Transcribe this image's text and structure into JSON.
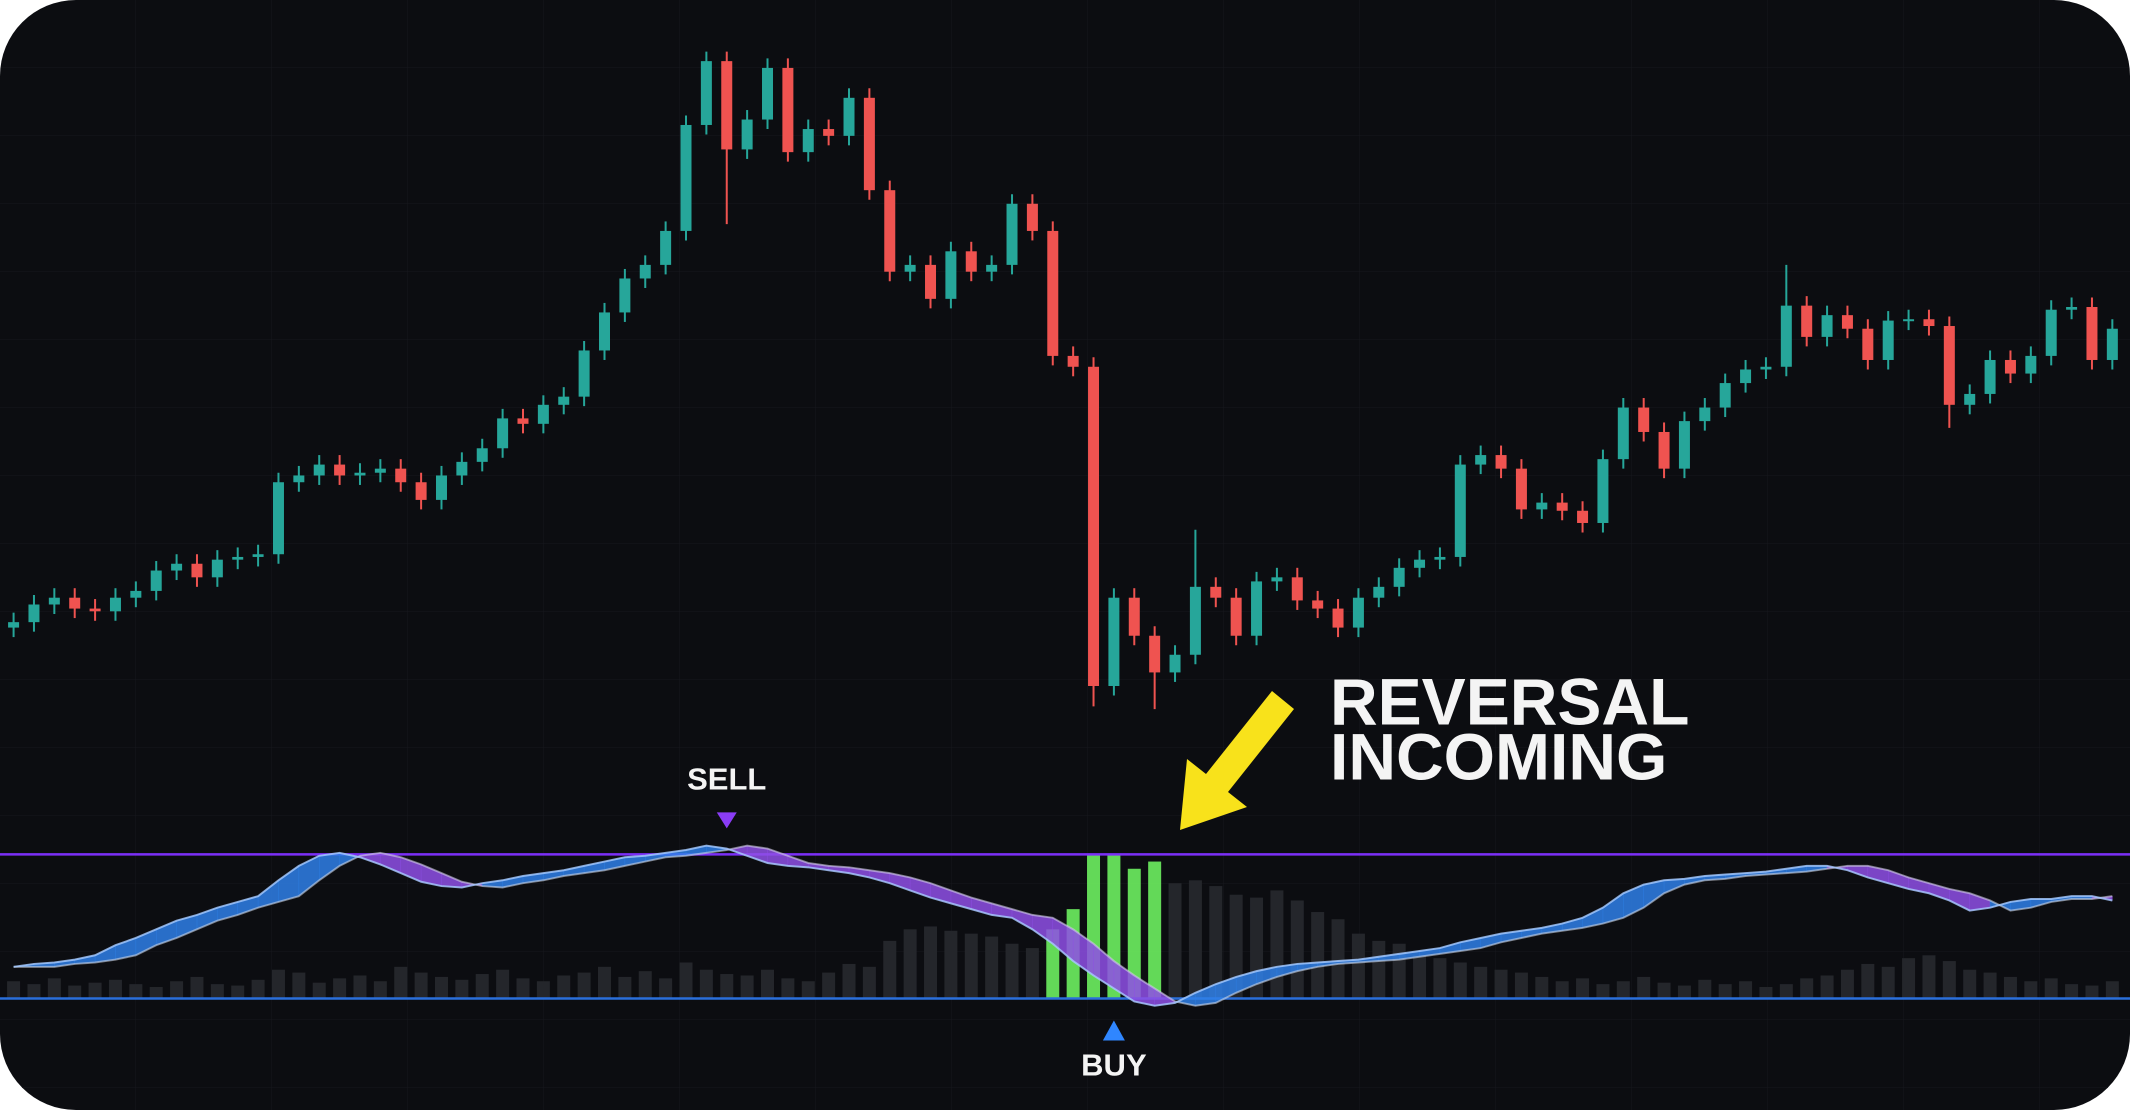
{
  "chart_data": {
    "type": "candlestick",
    "up_color": "#26a69a",
    "down_color": "#ef5350",
    "ylim": [
      0,
      600
    ],
    "open": [
      138,
      142,
      155,
      160,
      152,
      150,
      160,
      165,
      180,
      185,
      175,
      188,
      190,
      192,
      245,
      250,
      258,
      250,
      252,
      255,
      245,
      232,
      250,
      260,
      270,
      292,
      288,
      302,
      308,
      342,
      370,
      395,
      405,
      430,
      508,
      555,
      490,
      512,
      550,
      488,
      505,
      500,
      528,
      460,
      400,
      405,
      380,
      415,
      400,
      405,
      450,
      430,
      338,
      330,
      95,
      160,
      132,
      105,
      118,
      168,
      160,
      132,
      172,
      175,
      158,
      152,
      138,
      160,
      168,
      182,
      188,
      190,
      258,
      265,
      255,
      225,
      230,
      224,
      215,
      262,
      300,
      282,
      255,
      290,
      300,
      318,
      328,
      330,
      375,
      352,
      368,
      358,
      335,
      364,
      365,
      360,
      302,
      310,
      335,
      325,
      338,
      372,
      374,
      335
    ],
    "high": [
      149,
      162,
      167,
      167,
      159,
      167,
      172,
      187,
      192,
      192,
      195,
      197,
      199,
      252,
      257,
      265,
      265,
      259,
      262,
      262,
      252,
      257,
      267,
      277,
      299,
      299,
      309,
      315,
      349,
      377,
      402,
      412,
      437,
      515,
      562,
      562,
      519,
      557,
      557,
      512,
      512,
      535,
      535,
      467,
      412,
      412,
      422,
      422,
      412,
      457,
      457,
      437,
      345,
      337,
      167,
      167,
      139,
      125,
      210,
      175,
      167,
      179,
      182,
      182,
      165,
      159,
      167,
      175,
      189,
      195,
      197,
      265,
      272,
      272,
      262,
      237,
      237,
      231,
      269,
      307,
      307,
      289,
      297,
      307,
      325,
      335,
      337,
      405,
      382,
      375,
      375,
      365,
      371,
      372,
      372,
      367,
      317,
      342,
      342,
      345,
      379,
      381,
      381,
      365
    ],
    "low": [
      131,
      135,
      148,
      145,
      143,
      143,
      153,
      158,
      173,
      168,
      168,
      181,
      183,
      185,
      238,
      243,
      243,
      243,
      245,
      238,
      225,
      225,
      243,
      253,
      263,
      281,
      281,
      295,
      301,
      335,
      363,
      388,
      398,
      423,
      501,
      435,
      483,
      505,
      481,
      481,
      493,
      493,
      453,
      393,
      393,
      373,
      373,
      393,
      393,
      398,
      423,
      331,
      323,
      80,
      88,
      125,
      78,
      98,
      111,
      153,
      125,
      125,
      165,
      151,
      145,
      131,
      131,
      153,
      161,
      175,
      181,
      183,
      251,
      248,
      218,
      218,
      217,
      208,
      208,
      255,
      275,
      248,
      248,
      283,
      293,
      311,
      321,
      323,
      345,
      345,
      351,
      328,
      328,
      357,
      353,
      285,
      295,
      303,
      318,
      318,
      331,
      365,
      328,
      328
    ],
    "close": [
      142,
      155,
      160,
      152,
      150,
      160,
      165,
      180,
      185,
      175,
      188,
      190,
      192,
      245,
      250,
      258,
      250,
      252,
      255,
      245,
      232,
      250,
      260,
      270,
      292,
      288,
      302,
      308,
      342,
      370,
      395,
      405,
      430,
      508,
      555,
      490,
      512,
      550,
      488,
      505,
      500,
      528,
      460,
      400,
      405,
      380,
      415,
      400,
      405,
      450,
      430,
      338,
      330,
      95,
      160,
      132,
      105,
      118,
      168,
      160,
      132,
      172,
      175,
      158,
      152,
      138,
      160,
      168,
      182,
      188,
      190,
      258,
      265,
      255,
      225,
      230,
      224,
      215,
      262,
      300,
      282,
      255,
      290,
      300,
      318,
      328,
      330,
      375,
      352,
      368,
      358,
      335,
      364,
      365,
      360,
      302,
      310,
      335,
      325,
      338,
      372,
      374,
      335,
      358
    ],
    "oscillator": {
      "ylim": [
        -15,
        115
      ],
      "levels": [
        {
          "value": 100,
          "color": "#7b2ff7"
        },
        {
          "value": 0,
          "color": "#2a6fdb"
        }
      ],
      "up_color": "#2f80e8",
      "down_color": "#8f4fe6",
      "bar_color": "#24262b",
      "active_color": "#6df060",
      "wave": [
        22,
        24,
        25,
        27,
        30,
        37,
        42,
        48,
        54,
        58,
        63,
        67,
        71,
        82,
        92,
        99,
        101,
        98,
        93,
        87,
        81,
        78,
        77,
        80,
        82,
        85,
        87,
        89,
        92,
        95,
        98,
        99,
        101,
        103,
        106,
        104,
        99,
        94,
        92,
        91,
        89,
        87,
        84,
        80,
        75,
        70,
        66,
        62,
        58,
        56,
        48,
        38,
        26,
        16,
        7,
        -2,
        -5,
        -3,
        4,
        10,
        15,
        19,
        22,
        24,
        25,
        26,
        27,
        29,
        31,
        33,
        35,
        39,
        42,
        45,
        47,
        49,
        52,
        56,
        63,
        73,
        79,
        82,
        83,
        85,
        86,
        87,
        88,
        90,
        92,
        92,
        89,
        84,
        80,
        76,
        73,
        68,
        61,
        63,
        67,
        69,
        69,
        71,
        71,
        68
      ],
      "signal": [
        22,
        22,
        22,
        24,
        25,
        27,
        30,
        37,
        42,
        48,
        54,
        58,
        63,
        67,
        71,
        82,
        92,
        99,
        101,
        98,
        93,
        87,
        81,
        78,
        77,
        80,
        82,
        85,
        87,
        89,
        92,
        95,
        98,
        99,
        101,
        103,
        106,
        104,
        99,
        94,
        92,
        91,
        89,
        87,
        84,
        80,
        75,
        70,
        66,
        62,
        58,
        56,
        48,
        38,
        26,
        16,
        7,
        -2,
        -5,
        -3,
        4,
        10,
        15,
        19,
        22,
        24,
        25,
        26,
        27,
        29,
        31,
        33,
        35,
        39,
        42,
        45,
        47,
        49,
        52,
        56,
        63,
        73,
        79,
        82,
        83,
        85,
        86,
        87,
        88,
        90,
        92,
        92,
        89,
        84,
        80,
        76,
        73,
        68,
        61,
        63,
        67,
        69,
        69,
        71
      ],
      "volume": [
        12,
        10,
        14,
        9,
        11,
        13,
        10,
        8,
        12,
        15,
        10,
        9,
        13,
        20,
        18,
        11,
        14,
        16,
        12,
        22,
        18,
        15,
        13,
        17,
        20,
        14,
        12,
        16,
        18,
        22,
        15,
        19,
        14,
        25,
        20,
        17,
        16,
        20,
        14,
        12,
        18,
        24,
        22,
        40,
        48,
        50,
        47,
        45,
        43,
        38,
        35,
        null,
        null,
        null,
        null,
        null,
        null,
        80,
        82,
        78,
        72,
        70,
        75,
        68,
        60,
        55,
        45,
        40,
        38,
        30,
        28,
        25,
        22,
        20,
        18,
        15,
        12,
        14,
        10,
        12,
        15,
        11,
        9,
        13,
        10,
        12,
        8,
        10,
        14,
        16,
        20,
        24,
        22,
        28,
        30,
        26,
        20,
        18,
        15,
        12,
        14,
        10,
        9,
        12
      ],
      "volume_active": [
        null,
        null,
        null,
        null,
        null,
        null,
        null,
        null,
        null,
        null,
        null,
        null,
        null,
        null,
        null,
        null,
        null,
        null,
        null,
        null,
        null,
        null,
        null,
        null,
        null,
        null,
        null,
        null,
        null,
        null,
        null,
        null,
        null,
        null,
        null,
        null,
        null,
        null,
        null,
        null,
        null,
        null,
        null,
        null,
        null,
        null,
        null,
        null,
        null,
        null,
        null,
        48,
        62,
        100,
        100,
        90,
        95,
        null,
        null,
        null,
        null,
        null,
        null,
        null,
        null,
        null,
        null,
        null,
        null,
        null,
        null,
        null,
        null,
        null,
        null,
        null,
        null,
        null,
        null,
        null,
        null,
        null,
        null,
        null,
        null,
        null,
        null,
        null,
        null,
        null,
        null,
        null,
        null,
        null,
        null,
        null,
        null,
        null,
        null,
        null,
        null,
        null,
        null,
        null
      ],
      "signals": [
        {
          "label": "SELL",
          "at": 35,
          "direction": "down",
          "color": "#8a3cf5"
        },
        {
          "label": "BUY",
          "at": 54,
          "direction": "up",
          "color": "#2f86ff"
        }
      ]
    },
    "annotation": [
      "REVERSAL",
      "INCOMING"
    ]
  }
}
